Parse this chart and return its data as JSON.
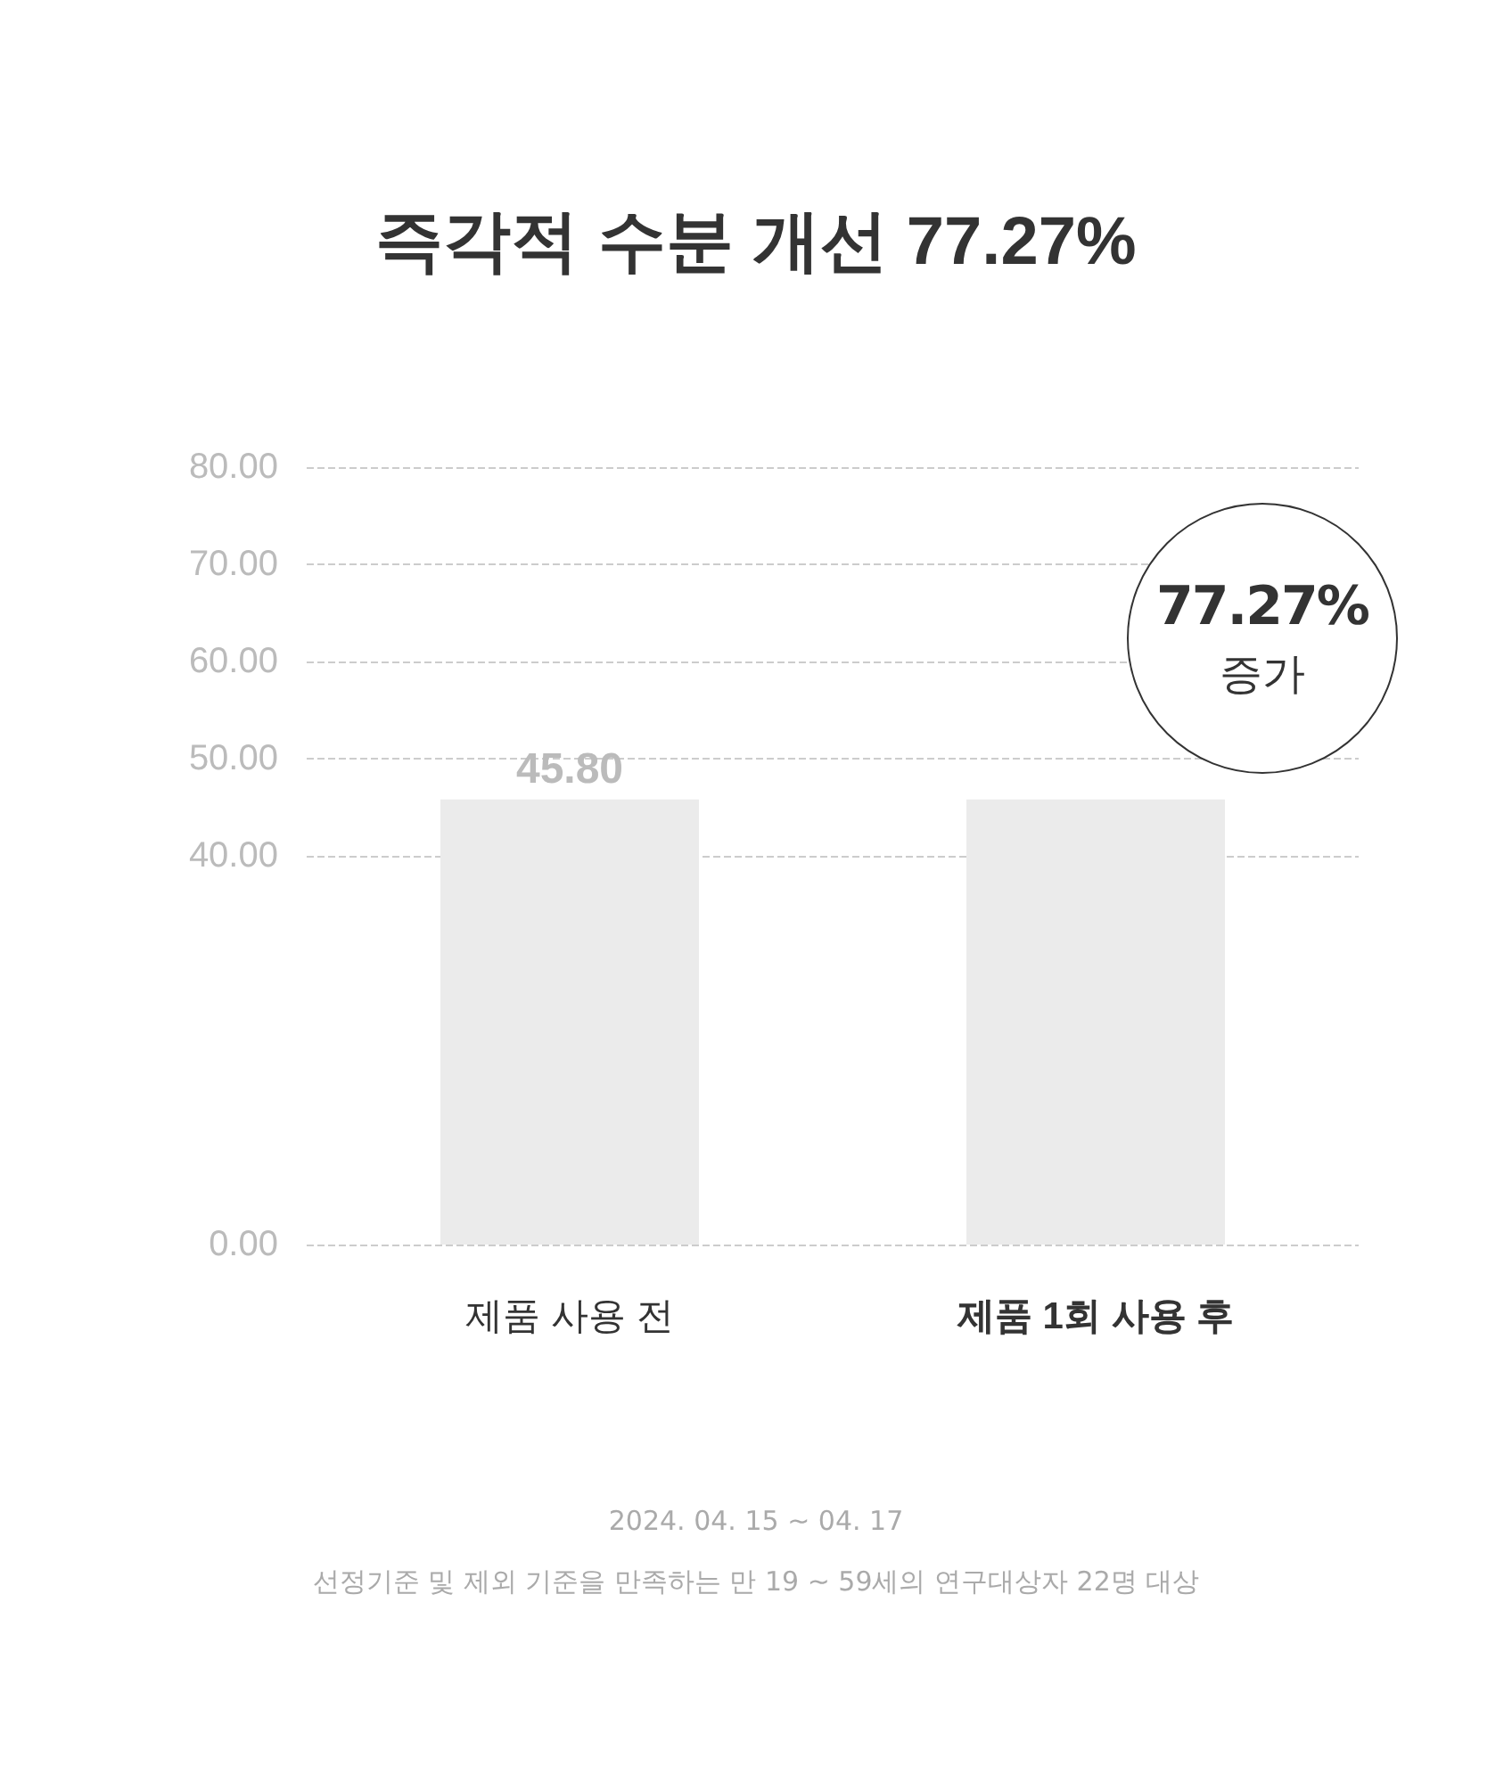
{
  "chart_data": {
    "type": "bar",
    "title": "즉각적 수분 개선 77.27%",
    "categories": [
      "제품 사용 전",
      "제품 1회 사용 후"
    ],
    "values": [
      45.8,
      45.8
    ],
    "value_labels": [
      "45.80",
      null
    ],
    "color": "#ebebeb",
    "ylim": [
      0,
      80
    ],
    "yticks": [
      {
        "value": 0,
        "label": "0.00"
      },
      {
        "value": 40,
        "label": "40.00"
      },
      {
        "value": 50,
        "label": "50.00"
      },
      {
        "value": 60,
        "label": "60.00"
      },
      {
        "value": 70,
        "label": "70.00"
      },
      {
        "value": 80,
        "label": "80.00"
      }
    ],
    "grid": "y",
    "annotations": [
      "77.27%\n증가",
      "2024. 04. 15 ~ 04. 17",
      "선정기준 및 제외 기준을 만족하는 만 19 ~ 59세의 연구대상자 22명 대상"
    ]
  }
}
